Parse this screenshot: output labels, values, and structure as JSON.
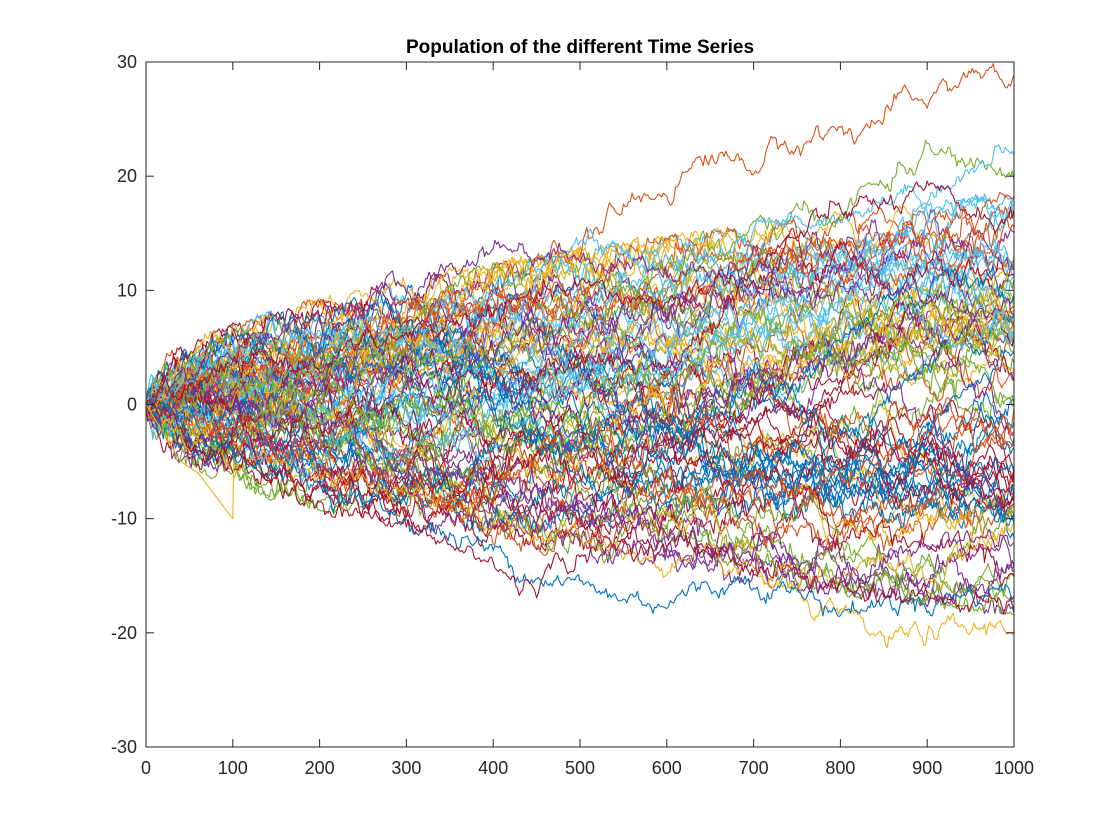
{
  "chart_data": {
    "type": "line",
    "title": "Population of the different Time Series",
    "xlabel": "",
    "ylabel": "",
    "xlim": [
      0,
      1000
    ],
    "ylim": [
      -30,
      30
    ],
    "xticks": [
      0,
      100,
      200,
      300,
      400,
      500,
      600,
      700,
      800,
      900,
      1000
    ],
    "yticks": [
      -30,
      -20,
      -10,
      0,
      10,
      20,
      30
    ],
    "xtick_labels": [
      "0",
      "100",
      "200",
      "300",
      "400",
      "500",
      "600",
      "700",
      "800",
      "900",
      "1000"
    ],
    "ytick_labels": [
      "-30",
      "-20",
      "-10",
      "0",
      "10",
      "20",
      "30"
    ],
    "grid": false,
    "legend": "none",
    "colors": [
      "#0072BD",
      "#D95319",
      "#EDB120",
      "#7E2F8E",
      "#77AC30",
      "#4DBEEE",
      "#A2142F"
    ],
    "series_count": 100,
    "n_points": 1000,
    "highlighted_series": [
      {
        "color": "#D95319",
        "x": [
          0,
          100,
          200,
          300,
          400,
          500,
          550,
          600,
          650,
          700,
          750,
          800,
          850,
          900,
          950,
          1000
        ],
        "y": [
          0,
          3,
          5,
          8,
          10,
          14,
          17,
          19,
          22,
          21,
          23,
          24,
          25,
          27,
          29,
          28
        ]
      },
      {
        "color": "#77AC30",
        "x": [
          0,
          100,
          200,
          300,
          400,
          500,
          600,
          700,
          800,
          900,
          1000
        ],
        "y": [
          0,
          6,
          4,
          3,
          5,
          7,
          10,
          15,
          17,
          22,
          20
        ]
      },
      {
        "color": "#4DBEEE",
        "x": [
          0,
          100,
          200,
          300,
          400,
          500,
          600,
          700,
          800,
          900,
          1000
        ],
        "y": [
          0,
          4,
          6,
          7,
          10,
          14,
          12,
          15,
          17,
          19,
          22
        ]
      },
      {
        "color": "#7E2F8E",
        "x": [
          0,
          100,
          200,
          300,
          400,
          500,
          600,
          700,
          800,
          900,
          1000
        ],
        "y": [
          0,
          5,
          8,
          10,
          14,
          13,
          12,
          11,
          10,
          9,
          8
        ]
      },
      {
        "color": "#EDB120",
        "x": [
          0,
          100,
          200,
          300,
          400,
          500,
          600,
          700,
          800,
          850,
          900,
          950,
          1000
        ],
        "y": [
          0,
          -5,
          -6,
          -8,
          -10,
          -12,
          -14,
          -15,
          -19,
          -21,
          -20,
          -20,
          -19
        ]
      },
      {
        "color": "#0072BD",
        "x": [
          0,
          100,
          200,
          300,
          400,
          500,
          550,
          600,
          700,
          800,
          900,
          1000
        ],
        "y": [
          0,
          -4,
          -7,
          -10,
          -13,
          -16,
          -17,
          -17,
          -15,
          -18,
          -17,
          -16
        ]
      },
      {
        "color": "#A2142F",
        "x": [
          0,
          100,
          200,
          300,
          400,
          430,
          500,
          600,
          700,
          800,
          900,
          1000
        ],
        "y": [
          0,
          -5,
          -8,
          -11,
          -14,
          -16,
          -13,
          -12,
          -14,
          -16,
          -17,
          -18
        ]
      },
      {
        "color": "#A2142F",
        "x": [
          0,
          100,
          200,
          300,
          400,
          500,
          600,
          700,
          800,
          900,
          1000
        ],
        "y": [
          0,
          3,
          4,
          6,
          8,
          10,
          9,
          12,
          17,
          18,
          16
        ]
      }
    ],
    "outlier_segment": {
      "color": "#EDB120",
      "x": [
        0,
        40,
        60,
        100,
        101
      ],
      "y": [
        0,
        -5,
        -6,
        -10,
        -5
      ]
    }
  }
}
